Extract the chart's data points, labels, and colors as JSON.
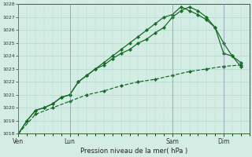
{
  "xlabel": "Pression niveau de la mer( hPa )",
  "ylim": [
    1018,
    1028
  ],
  "yticks": [
    1018,
    1019,
    1020,
    1021,
    1022,
    1023,
    1024,
    1025,
    1026,
    1027,
    1028
  ],
  "xtick_labels": [
    "Ven",
    "Lun",
    "Sam",
    "Dim"
  ],
  "xtick_pos": [
    0,
    3,
    9,
    12
  ],
  "xlim": [
    0,
    13.5
  ],
  "bg_color": "#d4ede4",
  "grid_color": "#b0d8cc",
  "line_color": "#1a6b2a",
  "vline_color": "#8888aa",
  "line1": {
    "x": [
      0,
      0.5,
      1.0,
      1.5,
      2.0,
      2.5,
      3.0,
      3.5,
      4.0,
      4.5,
      5.0,
      5.5,
      6.0,
      6.5,
      7.0,
      7.5,
      8.0,
      8.5,
      9.0,
      9.5,
      10.0,
      10.5,
      11.0,
      11.5,
      12.0,
      12.5,
      13.0
    ],
    "y": [
      1018.0,
      1019.0,
      1019.8,
      1020.0,
      1020.3,
      1020.8,
      1021.0,
      1022.0,
      1022.5,
      1023.0,
      1023.5,
      1024.0,
      1024.5,
      1025.0,
      1025.5,
      1026.0,
      1026.5,
      1027.0,
      1027.2,
      1027.8,
      1027.5,
      1027.2,
      1026.8,
      1026.2,
      1024.2,
      1024.0,
      1023.5
    ]
  },
  "line2": {
    "x": [
      0,
      0.5,
      1.0,
      1.5,
      2.0,
      2.5,
      3.0,
      3.5,
      4.0,
      4.5,
      5.0,
      5.5,
      6.0,
      6.5,
      7.0,
      7.5,
      8.0,
      8.5,
      9.0,
      9.5,
      10.0,
      10.5,
      11.0,
      11.5,
      12.0,
      12.5,
      13.0
    ],
    "y": [
      1018.0,
      1019.0,
      1019.8,
      1020.0,
      1020.3,
      1020.8,
      1021.0,
      1022.0,
      1022.5,
      1023.0,
      1023.3,
      1023.8,
      1024.2,
      1024.5,
      1025.0,
      1025.3,
      1025.8,
      1026.2,
      1027.0,
      1027.5,
      1027.8,
      1027.5,
      1027.0,
      1026.2,
      1025.0,
      1024.0,
      1023.2
    ]
  },
  "line3_dashed": {
    "x": [
      0,
      1.0,
      2.0,
      3.0,
      4.0,
      5.0,
      6.0,
      7.0,
      8.0,
      9.0,
      10.0,
      11.0,
      12.0,
      13.0
    ],
    "y": [
      1018.0,
      1019.5,
      1020.0,
      1020.5,
      1021.0,
      1021.3,
      1021.7,
      1022.0,
      1022.2,
      1022.5,
      1022.8,
      1023.0,
      1023.2,
      1023.3
    ]
  },
  "vlines": [
    0,
    3,
    9,
    12
  ],
  "figsize": [
    3.2,
    2.0
  ],
  "dpi": 100
}
